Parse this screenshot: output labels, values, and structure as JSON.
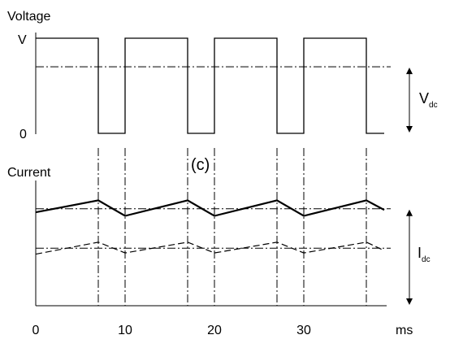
{
  "chart_data": [
    {
      "type": "line",
      "panel": "voltage",
      "ylabel": "Voltage",
      "y_tick_labels": [
        "V",
        "0"
      ],
      "annotation": {
        "main": "V",
        "sub": "dc"
      },
      "x_domain": [
        0,
        40
      ],
      "y_domain": [
        0,
        1
      ],
      "pulses": [
        {
          "start": 0,
          "end": 7
        },
        {
          "start": 10,
          "end": 17
        },
        {
          "start": 20,
          "end": 27
        },
        {
          "start": 30,
          "end": 37
        }
      ],
      "tail_end": 39,
      "dc_level": 0.7
    },
    {
      "type": "line",
      "panel": "current",
      "title": "(c)",
      "ylabel": "Current",
      "xlabel": "ms",
      "x_tick_labels": [
        "0",
        "10",
        "20",
        "30"
      ],
      "x_tick_values": [
        0,
        10,
        20,
        30
      ],
      "annotation": {
        "main": "I",
        "sub": "dc"
      },
      "x_domain": [
        0,
        40
      ],
      "series": [
        {
          "style": "solid-bold",
          "x": [
            0,
            7,
            10,
            17,
            20,
            27,
            30,
            37,
            39
          ],
          "y": [
            0.7,
            0.8,
            0.67,
            0.8,
            0.67,
            0.8,
            0.67,
            0.8,
            0.72
          ],
          "dc_level": 0.73
        },
        {
          "style": "dashed",
          "x": [
            0,
            7,
            10,
            17,
            20,
            27,
            30,
            37,
            39
          ],
          "y": [
            0.35,
            0.45,
            0.36,
            0.45,
            0.36,
            0.45,
            0.36,
            0.45,
            0.38
          ],
          "dc_level": 0.4
        }
      ],
      "switch_times": [
        7,
        10,
        17,
        20,
        27,
        30,
        37
      ]
    }
  ]
}
